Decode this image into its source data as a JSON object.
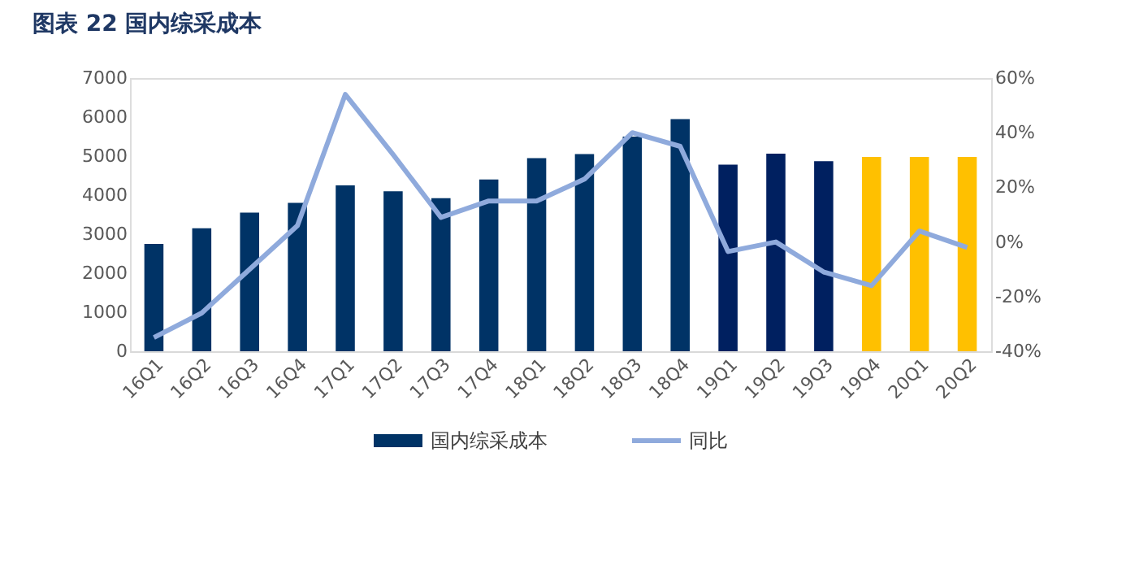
{
  "chart_data": {
    "type": "bar",
    "title": "图表 22 国内综采成本",
    "categories": [
      "16Q1",
      "16Q2",
      "16Q3",
      "16Q4",
      "17Q1",
      "17Q2",
      "17Q3",
      "17Q4",
      "18Q1",
      "18Q2",
      "18Q3",
      "18Q4",
      "19Q1",
      "19Q2",
      "19Q3",
      "19Q4",
      "20Q1",
      "20Q2"
    ],
    "series": [
      {
        "name": "国内综采成本",
        "color": "#003366",
        "colors": [
          "#003366",
          "#003366",
          "#003366",
          "#003366",
          "#003366",
          "#003366",
          "#003366",
          "#003366",
          "#003366",
          "#003366",
          "#003366",
          "#003366",
          "#002060",
          "#002060",
          "#002060",
          "#ffc000",
          "#ffc000",
          "#ffc000"
        ],
        "values": [
          2750,
          3150,
          3550,
          3800,
          4250,
          4100,
          3920,
          4400,
          4950,
          5050,
          5500,
          5950,
          4780,
          5060,
          4870,
          4980,
          4980,
          4980
        ]
      },
      {
        "name": "同比",
        "type": "line",
        "axis": "y2",
        "color": "#8faadc",
        "values": [
          -35,
          -26,
          -10,
          6,
          54,
          32,
          9,
          15,
          15,
          23,
          40,
          35,
          -3.5,
          0,
          -11,
          -16,
          4,
          -2
        ]
      }
    ],
    "ylim": [
      0,
      7000
    ],
    "yticks": [
      0,
      1000,
      2000,
      3000,
      4000,
      5000,
      6000,
      7000
    ],
    "y2lim": [
      -40,
      60
    ],
    "y2ticks": [
      {
        "value": -40,
        "label": "-40%"
      },
      {
        "value": -20,
        "label": "-20%"
      },
      {
        "value": 0,
        "label": "0%"
      },
      {
        "value": 20,
        "label": "20%"
      },
      {
        "value": 40,
        "label": "40%"
      },
      {
        "value": 60,
        "label": "60%"
      }
    ],
    "grid": false,
    "legend": "bottom"
  }
}
